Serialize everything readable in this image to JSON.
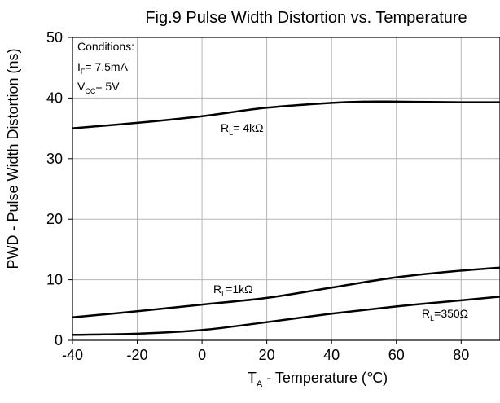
{
  "chart_data": {
    "type": "line",
    "title": "Fig.9 Pulse Width Distortion vs. Temperature",
    "xlabel_main": "T",
    "xlabel_sub": "A",
    "xlabel_rest": " - Temperature (℃)",
    "ylabel": "PWD - Pulse Width Distortion (ns)",
    "xlim": [
      -40,
      92
    ],
    "ylim": [
      0,
      50
    ],
    "x_ticks": [
      -40,
      -20,
      0,
      20,
      40,
      60,
      80
    ],
    "y_ticks": [
      0,
      10,
      20,
      30,
      40,
      50
    ],
    "grid": true,
    "conditions": {
      "heading": "Conditions:",
      "line1_main": "I",
      "line1_sub": "F",
      "line1_rest": "= 7.5mA",
      "line2_main": "V",
      "line2_sub": "CC",
      "line2_rest": "= 5V"
    },
    "series": [
      {
        "label_main": "R",
        "label_sub": "L",
        "label_rest": "= 4kΩ",
        "x": [
          -40,
          -20,
          0,
          20,
          40,
          50,
          60,
          80,
          92
        ],
        "y": [
          35.0,
          35.9,
          37.0,
          38.4,
          39.2,
          39.4,
          39.4,
          39.3,
          39.3
        ]
      },
      {
        "label_main": "R",
        "label_sub": "L",
        "label_rest": "=1kΩ",
        "x": [
          -40,
          -20,
          0,
          20,
          40,
          60,
          80,
          92
        ],
        "y": [
          3.8,
          4.8,
          5.9,
          7.0,
          8.7,
          10.4,
          11.5,
          12.0
        ]
      },
      {
        "label_main": "R",
        "label_sub": "L",
        "label_rest": "=350Ω",
        "x": [
          -40,
          -20,
          0,
          20,
          40,
          60,
          80,
          92
        ],
        "y": [
          0.9,
          1.1,
          1.7,
          3.0,
          4.4,
          5.6,
          6.6,
          7.2
        ]
      }
    ]
  }
}
